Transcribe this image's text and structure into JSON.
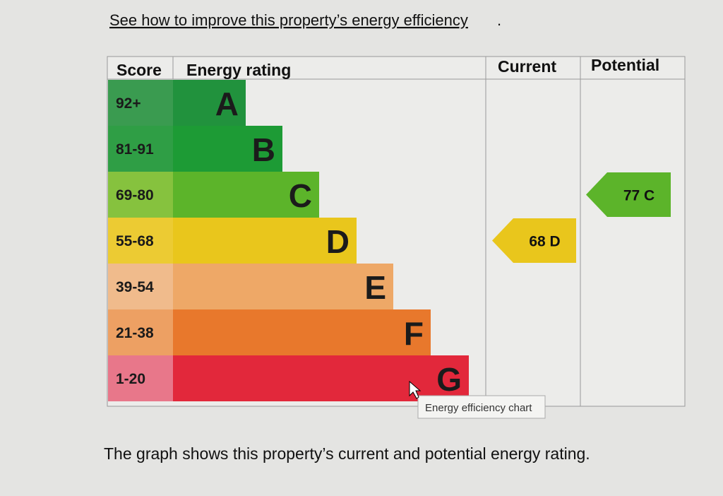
{
  "link": "See how to improve this property’s energy efficiency",
  "link_end": ".",
  "headers": [
    "Score",
    "Energy rating",
    "Current",
    "Potential"
  ],
  "bands": [
    {
      "score": "92+",
      "letter": "A"
    },
    {
      "score": "81-91",
      "letter": "B"
    },
    {
      "score": "69-80",
      "letter": "C"
    },
    {
      "score": "55-68",
      "letter": "D"
    },
    {
      "score": "39-54",
      "letter": "E"
    },
    {
      "score": "21-38",
      "letter": "F"
    },
    {
      "score": "1-20",
      "letter": "G"
    }
  ],
  "current": "68 D",
  "potential": "77 C",
  "tooltip": "Energy efficiency chart",
  "caption": "The graph shows this property’s current and potential energy rating."
}
